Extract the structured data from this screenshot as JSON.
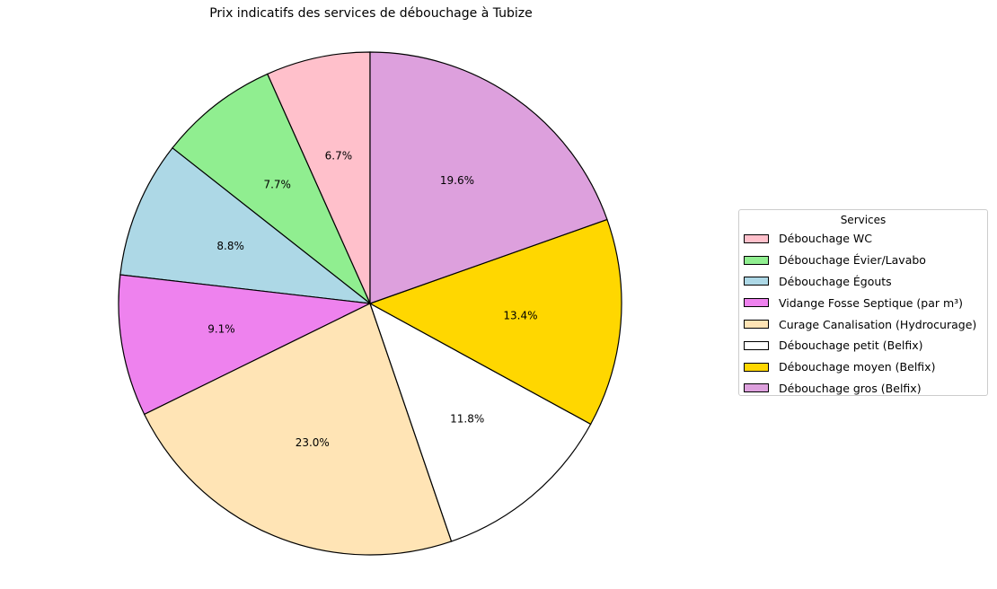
{
  "chart_data": {
    "type": "pie",
    "title": "Prix indicatifs des services de débouchage à Tubize",
    "legend_title": "Services",
    "legend_position": "right",
    "start_angle_deg": 90,
    "direction": "counterclockwise",
    "slices": [
      {
        "label": "Débouchage WC",
        "percent": 6.7,
        "pct_text": "6.7%",
        "color": "#ffc0cb"
      },
      {
        "label": "Débouchage Évier/Lavabo",
        "percent": 7.7,
        "pct_text": "7.7%",
        "color": "#90ee90"
      },
      {
        "label": "Débouchage Égouts",
        "percent": 8.8,
        "pct_text": "8.8%",
        "color": "#add8e6"
      },
      {
        "label": "Vidange Fosse Septique (par m³)",
        "percent": 9.1,
        "pct_text": "9.1%",
        "color": "#ee82ee"
      },
      {
        "label": "Curage Canalisation (Hydrocurage)",
        "percent": 23.0,
        "pct_text": "23.0%",
        "color": "#ffe4b5"
      },
      {
        "label": "Débouchage petit (Belfix)",
        "percent": 11.8,
        "pct_text": "11.8%",
        "color": "#ffffff"
      },
      {
        "label": "Débouchage moyen (Belfix)",
        "percent": 13.4,
        "pct_text": "13.4%",
        "color": "#ffd700"
      },
      {
        "label": "Débouchage gros (Belfix)",
        "percent": 19.6,
        "pct_text": "19.6%",
        "color": "#dda0dd"
      }
    ]
  }
}
